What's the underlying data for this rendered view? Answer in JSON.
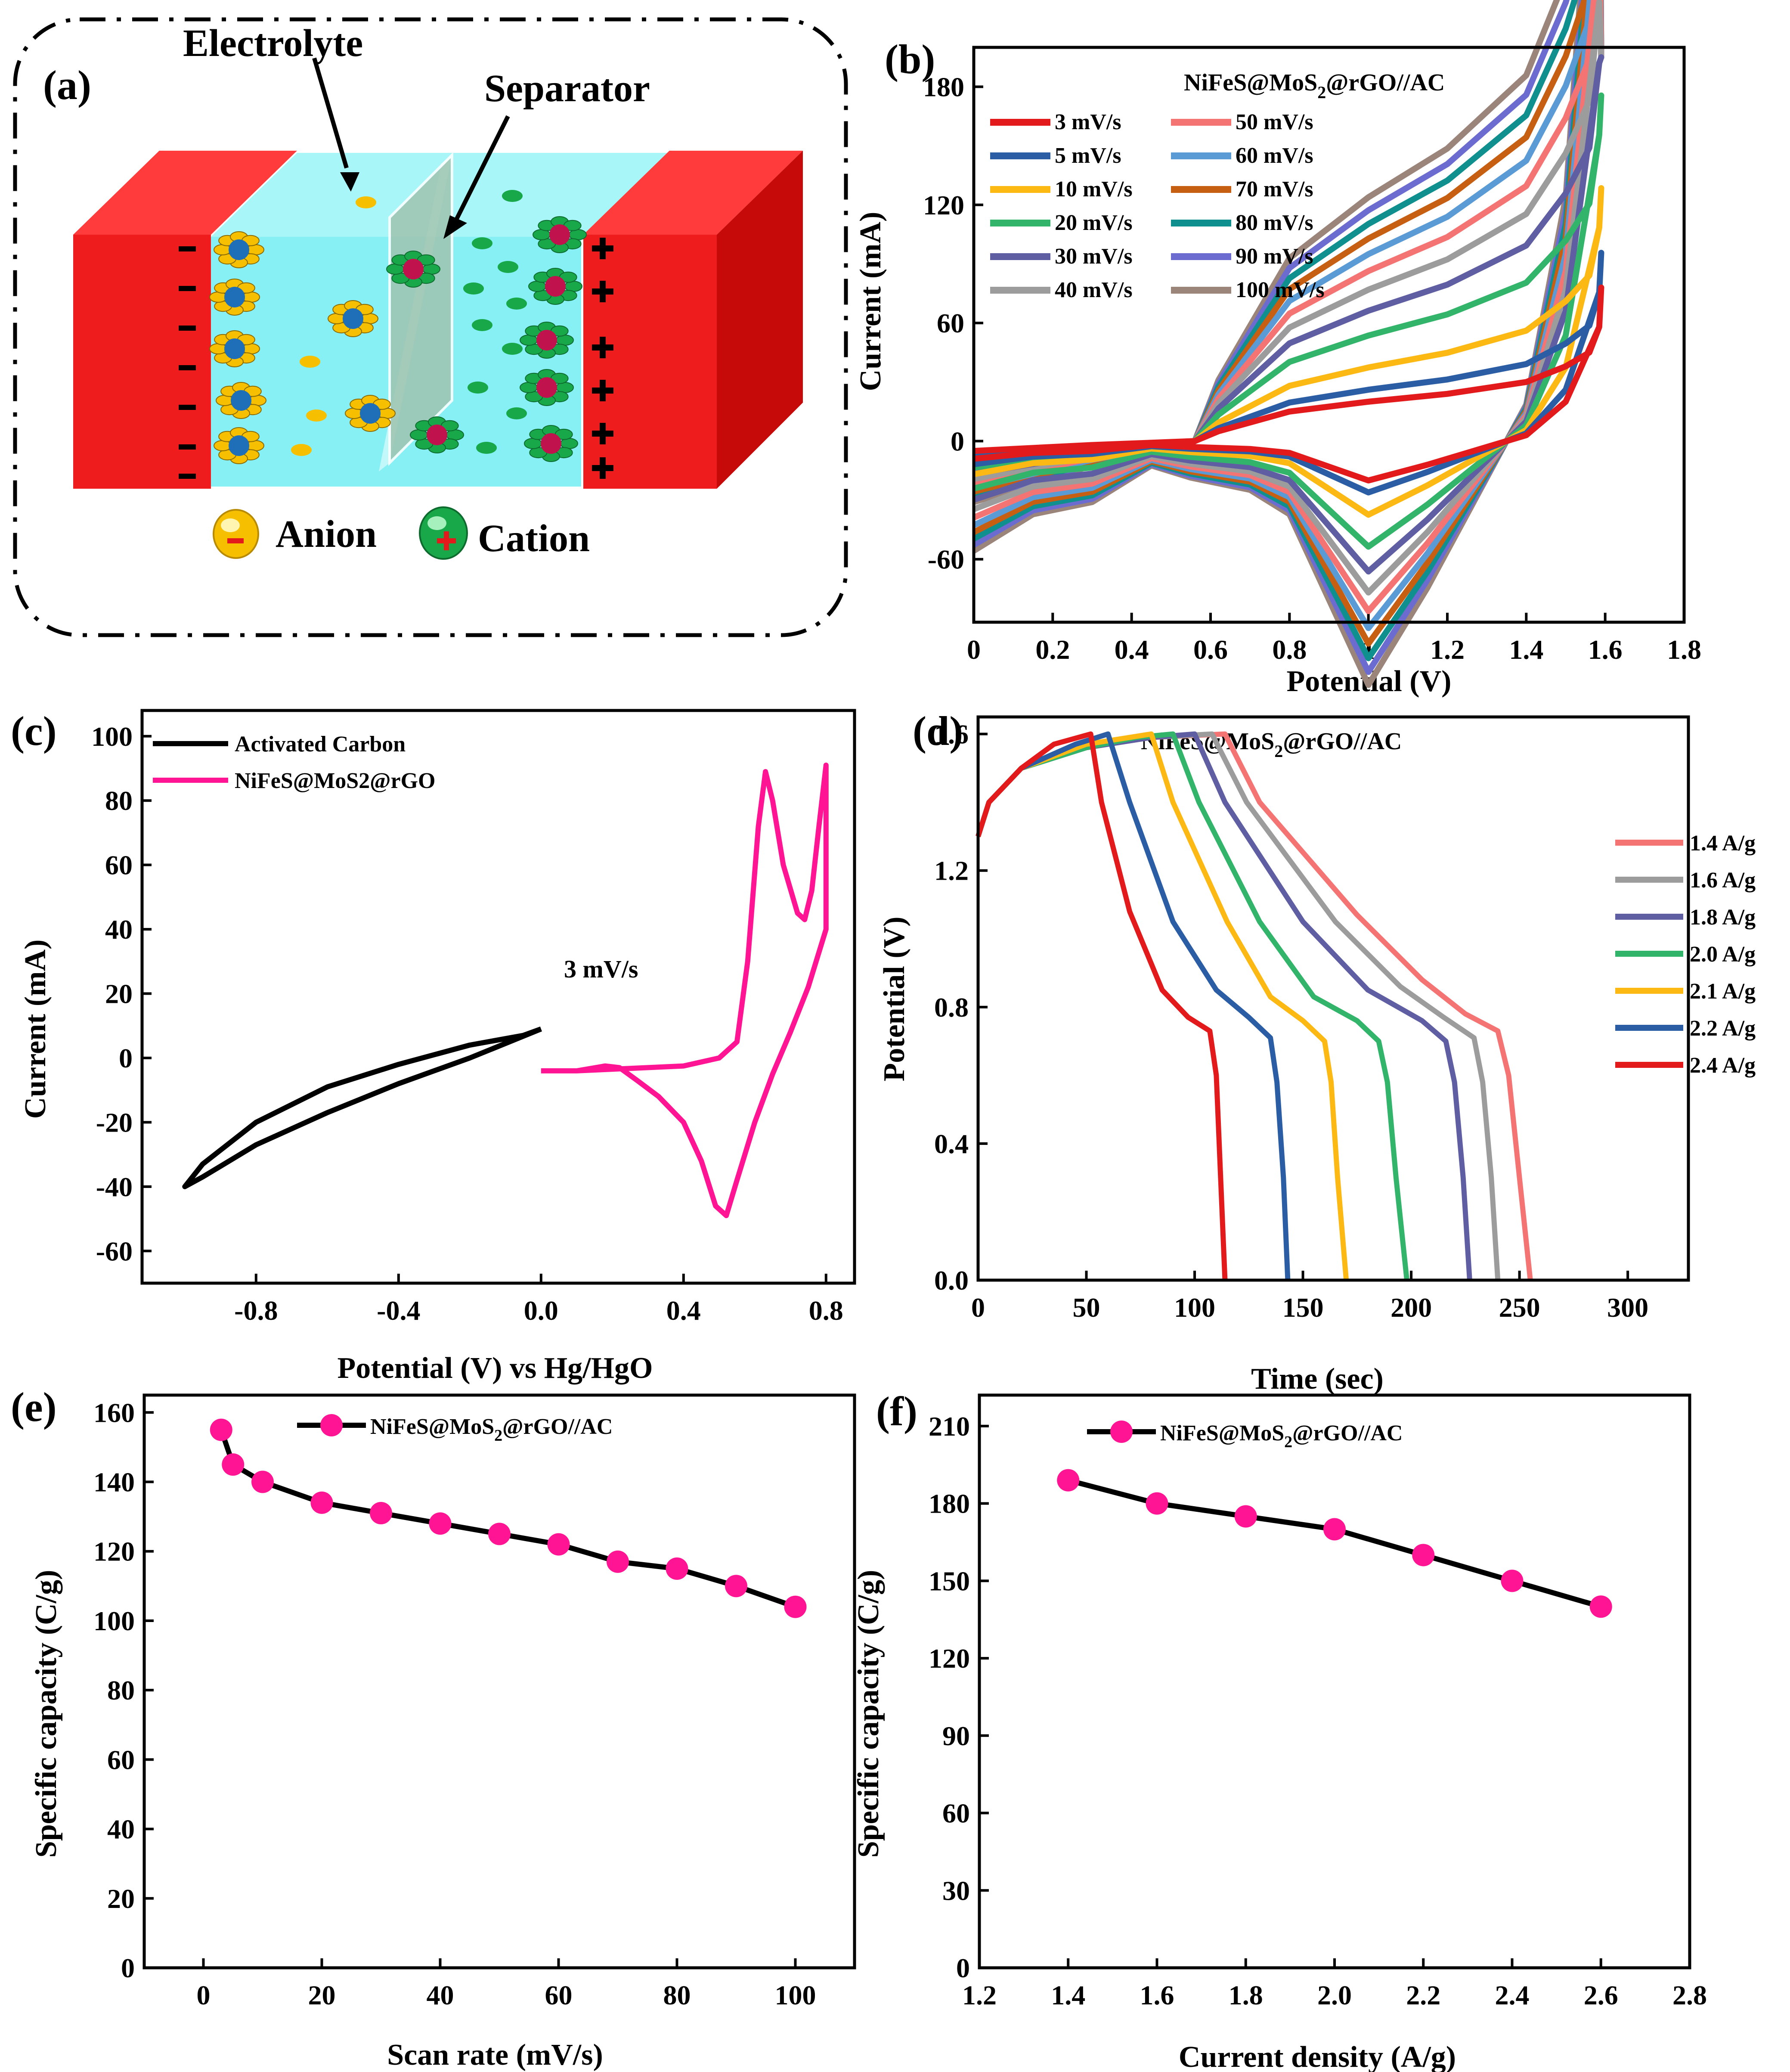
{
  "figure": {
    "panel_a": {
      "letter": "(a)",
      "labels": {
        "electrolyte": "Electrolyte",
        "separator": "Separator",
        "anion": "Anion",
        "cation": "Cation",
        "minus": "-",
        "plus": "+"
      },
      "colors": {
        "electrode": "#ee1c1c",
        "electrolyte": "#86f0f4",
        "separator": "#a9c9b7",
        "anion": "#f6c000",
        "cation": "#18a84a",
        "ion_core_anion": "#1e6fb8",
        "ion_core_cation": "#c0134e"
      }
    }
  },
  "chart_data": [
    {
      "id": "b",
      "letter": "(b)",
      "type": "line",
      "title_parts": [
        "NiFeS@MoS",
        "2",
        "@rGO//AC"
      ],
      "xlabel": "Potential (V)",
      "ylabel": "Current (mA)",
      "xlim": [
        0.0,
        1.8
      ],
      "ylim": [
        -92,
        200
      ],
      "xticks": [
        0.0,
        0.2,
        0.4,
        0.6,
        0.8,
        1.0,
        1.2,
        1.4,
        1.6,
        1.8
      ],
      "yticks": [
        -60,
        0,
        60,
        120,
        180
      ],
      "legend_columns": 2,
      "cv_shape": {
        "anodic_knots": [
          [
            0.0,
            -5
          ],
          [
            0.3,
            -2
          ],
          [
            0.56,
            0
          ],
          [
            0.62,
            5
          ],
          [
            0.8,
            15
          ],
          [
            1.0,
            20
          ],
          [
            1.2,
            24
          ],
          [
            1.3,
            27
          ],
          [
            1.4,
            30
          ],
          [
            1.5,
            38
          ],
          [
            1.56,
            45
          ],
          [
            1.585,
            58
          ]
        ],
        "cathodic_knots": [
          [
            1.585,
            58
          ],
          [
            1.5,
            20
          ],
          [
            1.4,
            3
          ],
          [
            1.3,
            -3
          ],
          [
            1.15,
            -12
          ],
          [
            1.0,
            -20
          ],
          [
            0.9,
            -13
          ],
          [
            0.8,
            -6
          ],
          [
            0.7,
            -4
          ],
          [
            0.55,
            -3
          ],
          [
            0.45,
            -2
          ],
          [
            0.3,
            -5
          ],
          [
            0.15,
            -6
          ],
          [
            0.0,
            -9
          ]
        ],
        "scale_exponent": 0.52,
        "apex_current": 195
      },
      "series": [
        {
          "name": "3 mV/s",
          "scan_rate": 3,
          "color": "#e31a1c"
        },
        {
          "name": "5 mV/s",
          "scan_rate": 5,
          "color": "#2b5da5"
        },
        {
          "name": "10 mV/s",
          "scan_rate": 10,
          "color": "#fcb813"
        },
        {
          "name": "20 mV/s",
          "scan_rate": 20,
          "color": "#32b46a"
        },
        {
          "name": "30 mV/s",
          "scan_rate": 30,
          "color": "#5f5ea3"
        },
        {
          "name": "40 mV/s",
          "scan_rate": 40,
          "color": "#9c9c9c"
        },
        {
          "name": "50 mV/s",
          "scan_rate": 50,
          "color": "#f47373"
        },
        {
          "name": "60 mV/s",
          "scan_rate": 60,
          "color": "#5b9bd5"
        },
        {
          "name": "70 mV/s",
          "scan_rate": 70,
          "color": "#c65f12"
        },
        {
          "name": "80 mV/s",
          "scan_rate": 80,
          "color": "#108f8f"
        },
        {
          "name": "90 mV/s",
          "scan_rate": 90,
          "color": "#6c6cd0"
        },
        {
          "name": "100 mV/s",
          "scan_rate": 100,
          "color": "#9b8479"
        }
      ]
    },
    {
      "id": "c",
      "letter": "(c)",
      "type": "line",
      "xlabel": "Potential (V) vs Hg/HgO",
      "ylabel": "Current (mA)",
      "xlim": [
        -1.12,
        0.88
      ],
      "ylim": [
        -70,
        108
      ],
      "xticks": [
        -0.8,
        -0.4,
        0.0,
        0.4,
        0.8
      ],
      "xtick_labels": [
        "-0.8",
        "-0.4",
        "0.0",
        "0.4",
        "0.8"
      ],
      "yticks": [
        -60,
        -40,
        -20,
        0,
        20,
        40,
        60,
        80,
        100
      ],
      "annotation": "3 mV/s",
      "series": [
        {
          "name": "Activated Carbon",
          "color": "#000000",
          "points": [
            [
              0.0,
              9
            ],
            [
              -0.2,
              0
            ],
            [
              -0.4,
              -8
            ],
            [
              -0.6,
              -17
            ],
            [
              -0.8,
              -27
            ],
            [
              -0.95,
              -37
            ],
            [
              -1.0,
              -40
            ],
            [
              -0.95,
              -33
            ],
            [
              -0.8,
              -20
            ],
            [
              -0.6,
              -9
            ],
            [
              -0.4,
              -2
            ],
            [
              -0.2,
              4
            ],
            [
              -0.05,
              7
            ],
            [
              0.0,
              9
            ]
          ]
        },
        {
          "name": "NiFeS@MoS2@rGO",
          "color": "#ff1493",
          "points": [
            [
              0.0,
              -4
            ],
            [
              0.1,
              -4
            ],
            [
              0.2,
              -3.5
            ],
            [
              0.3,
              -3
            ],
            [
              0.4,
              -2.5
            ],
            [
              0.5,
              0
            ],
            [
              0.55,
              5
            ],
            [
              0.58,
              30
            ],
            [
              0.61,
              72
            ],
            [
              0.63,
              89
            ],
            [
              0.65,
              80
            ],
            [
              0.68,
              60
            ],
            [
              0.72,
              45
            ],
            [
              0.74,
              43
            ],
            [
              0.76,
              52
            ],
            [
              0.78,
              72
            ],
            [
              0.8,
              91
            ],
            [
              0.8,
              40
            ],
            [
              0.75,
              22
            ],
            [
              0.7,
              8
            ],
            [
              0.65,
              -5
            ],
            [
              0.6,
              -20
            ],
            [
              0.55,
              -38
            ],
            [
              0.52,
              -49
            ],
            [
              0.49,
              -46
            ],
            [
              0.45,
              -32
            ],
            [
              0.4,
              -20
            ],
            [
              0.33,
              -12
            ],
            [
              0.27,
              -7
            ],
            [
              0.22,
              -3
            ],
            [
              0.18,
              -2.5
            ],
            [
              0.1,
              -4
            ],
            [
              0.0,
              -4
            ]
          ]
        }
      ]
    },
    {
      "id": "d",
      "letter": "(d)",
      "type": "line",
      "title_parts": [
        "NiFeS@MoS",
        "2",
        "@rGO//AC"
      ],
      "xlabel": "Time (sec)",
      "ylabel": "Potential (V)",
      "xlim": [
        0,
        328
      ],
      "ylim": [
        0.0,
        1.65
      ],
      "xticks": [
        0,
        50,
        100,
        150,
        200,
        250,
        300
      ],
      "yticks": [
        0.0,
        0.4,
        0.8,
        1.2,
        1.6
      ],
      "ytick_labels": [
        "0.0",
        "0.4",
        "0.8",
        "1.2",
        "1.6"
      ],
      "series": [
        {
          "name": "1.4 A/g",
          "color": "#f47373",
          "points": [
            [
              0,
              1.3
            ],
            [
              5,
              1.4
            ],
            [
              20,
              1.5
            ],
            [
              50,
              1.56
            ],
            [
              80,
              1.59
            ],
            [
              114,
              1.6
            ],
            [
              130,
              1.4
            ],
            [
              175,
              1.07
            ],
            [
              205,
              0.88
            ],
            [
              225,
              0.78
            ],
            [
              240,
              0.73
            ],
            [
              245,
              0.6
            ],
            [
              250,
              0.3
            ],
            [
              255,
              0.0
            ]
          ]
        },
        {
          "name": "1.6 A/g",
          "color": "#9c9c9c",
          "points": [
            [
              0,
              1.3
            ],
            [
              5,
              1.4
            ],
            [
              20,
              1.5
            ],
            [
              50,
              1.56
            ],
            [
              80,
              1.59
            ],
            [
              108,
              1.6
            ],
            [
              124,
              1.4
            ],
            [
              165,
              1.05
            ],
            [
              195,
              0.86
            ],
            [
              215,
              0.77
            ],
            [
              229,
              0.71
            ],
            [
              233,
              0.58
            ],
            [
              237,
              0.3
            ],
            [
              240,
              0.0
            ]
          ]
        },
        {
          "name": "1.8 A/g",
          "color": "#5f5ea3",
          "points": [
            [
              0,
              1.3
            ],
            [
              5,
              1.4
            ],
            [
              20,
              1.5
            ],
            [
              50,
              1.56
            ],
            [
              80,
              1.59
            ],
            [
              100,
              1.6
            ],
            [
              114,
              1.4
            ],
            [
              150,
              1.05
            ],
            [
              180,
              0.85
            ],
            [
              205,
              0.76
            ],
            [
              216,
              0.7
            ],
            [
              220,
              0.58
            ],
            [
              224,
              0.3
            ],
            [
              227,
              0.0
            ]
          ]
        },
        {
          "name": "2.0 A/g",
          "color": "#32b46a",
          "points": [
            [
              0,
              1.3
            ],
            [
              5,
              1.4
            ],
            [
              20,
              1.5
            ],
            [
              50,
              1.56
            ],
            [
              73,
              1.59
            ],
            [
              90,
              1.6
            ],
            [
              102,
              1.4
            ],
            [
              130,
              1.05
            ],
            [
              155,
              0.83
            ],
            [
              175,
              0.76
            ],
            [
              185,
              0.7
            ],
            [
              189,
              0.58
            ],
            [
              193,
              0.3
            ],
            [
              198,
              0.0
            ]
          ]
        },
        {
          "name": "2.1 A/g",
          "color": "#fcb813",
          "points": [
            [
              0,
              1.3
            ],
            [
              5,
              1.4
            ],
            [
              20,
              1.5
            ],
            [
              50,
              1.57
            ],
            [
              70,
              1.59
            ],
            [
              80,
              1.6
            ],
            [
              90,
              1.4
            ],
            [
              115,
              1.05
            ],
            [
              135,
              0.83
            ],
            [
              150,
              0.76
            ],
            [
              160,
              0.7
            ],
            [
              163,
              0.58
            ],
            [
              166,
              0.3
            ],
            [
              170,
              0.0
            ]
          ]
        },
        {
          "name": "2.2 A/g",
          "color": "#2b5da5",
          "points": [
            [
              0,
              1.3
            ],
            [
              5,
              1.4
            ],
            [
              20,
              1.5
            ],
            [
              45,
              1.57
            ],
            [
              60,
              1.6
            ],
            [
              70,
              1.4
            ],
            [
              90,
              1.05
            ],
            [
              110,
              0.85
            ],
            [
              125,
              0.77
            ],
            [
              135,
              0.71
            ],
            [
              138,
              0.58
            ],
            [
              141,
              0.3
            ],
            [
              143,
              0.0
            ]
          ]
        },
        {
          "name": "2.4 A/g",
          "color": "#e31a1c",
          "points": [
            [
              0,
              1.3
            ],
            [
              5,
              1.4
            ],
            [
              20,
              1.5
            ],
            [
              35,
              1.57
            ],
            [
              52,
              1.6
            ],
            [
              57,
              1.4
            ],
            [
              70,
              1.08
            ],
            [
              85,
              0.85
            ],
            [
              97,
              0.77
            ],
            [
              107,
              0.73
            ],
            [
              110,
              0.6
            ],
            [
              112,
              0.3
            ],
            [
              114,
              0.0
            ]
          ]
        }
      ]
    },
    {
      "id": "e",
      "letter": "(e)",
      "type": "line",
      "legend_parts": [
        "NiFeS@MoS",
        "2",
        "@rGO//AC"
      ],
      "xlabel": "Scan rate (mV/s)",
      "ylabel": "Specific capacity (C/g)",
      "xlim": [
        -10,
        110
      ],
      "ylim": [
        0,
        165
      ],
      "xticks": [
        0,
        20,
        40,
        60,
        80,
        100
      ],
      "yticks": [
        0,
        20,
        40,
        60,
        80,
        100,
        120,
        140,
        160
      ],
      "line_color": "#000000",
      "marker_color": "#ff1493",
      "x": [
        3,
        5,
        10,
        20,
        30,
        40,
        50,
        60,
        70,
        80,
        90,
        100
      ],
      "values": [
        155,
        145,
        140,
        134,
        131,
        128,
        125,
        122,
        117,
        115,
        110,
        104
      ]
    },
    {
      "id": "f",
      "letter": "(f)",
      "type": "line",
      "legend_parts": [
        "NiFeS@MoS",
        "2",
        "@rGO//AC"
      ],
      "xlabel": "Current density (A/g)",
      "ylabel": "Specific capacity (C/g)",
      "xlim": [
        1.2,
        2.8
      ],
      "ylim": [
        0,
        222
      ],
      "xticks": [
        1.2,
        1.4,
        1.6,
        1.8,
        2.0,
        2.2,
        2.4,
        2.6,
        2.8
      ],
      "xtick_labels": [
        "1.2",
        "1.4",
        "1.6",
        "1.8",
        "2.0",
        "2.2",
        "2.4",
        "2.6",
        "2.8"
      ],
      "yticks": [
        0,
        30,
        60,
        90,
        120,
        150,
        180,
        210
      ],
      "line_color": "#000000",
      "marker_color": "#ff1493",
      "x": [
        1.4,
        1.6,
        1.8,
        2.0,
        2.2,
        2.4,
        2.6
      ],
      "values": [
        189,
        180,
        175,
        170,
        160,
        150,
        140
      ]
    }
  ]
}
